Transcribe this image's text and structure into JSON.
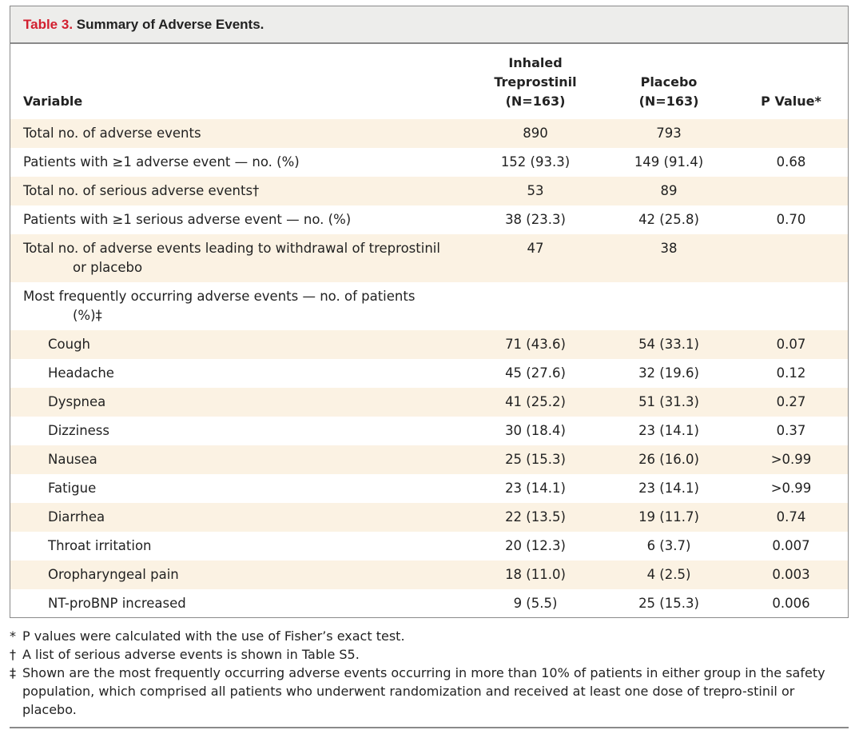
{
  "table": {
    "title_number": "Table 3.",
    "title_text": " Summary of Adverse Events.",
    "headers": {
      "variable": "Variable",
      "inhaled": [
        "Inhaled",
        "Treprostinil",
        "(N=163)"
      ],
      "placebo": [
        "Placebo",
        "(N=163)"
      ],
      "pvalue": "P Value*"
    },
    "rows": [
      {
        "variable": "Total no. of adverse events",
        "inhaled": "890",
        "placebo": "793",
        "pvalue": ""
      },
      {
        "variable": "Patients with ≥1 adverse event — no. (%)",
        "inhaled": "152 (93.3)",
        "placebo": "149 (91.4)",
        "pvalue": "0.68"
      },
      {
        "variable": "Total no. of serious adverse events†",
        "inhaled": "53",
        "placebo": "89",
        "pvalue": ""
      },
      {
        "variable": "Patients with ≥1 serious adverse event — no. (%)",
        "inhaled": "38 (23.3)",
        "placebo": "42 (25.8)",
        "pvalue": "0.70"
      },
      {
        "variable": "Total no. of adverse events leading to withdrawal of treprostinil",
        "variable_cont": "or placebo",
        "inhaled": "47",
        "placebo": "38",
        "pvalue": ""
      },
      {
        "variable": "Most frequently occurring adverse events — no. of patients",
        "variable_cont": "(%)‡",
        "inhaled": "",
        "placebo": "",
        "pvalue": ""
      },
      {
        "variable": "Cough",
        "inhaled": "71 (43.6)",
        "placebo": "54 (33.1)",
        "pvalue": "0.07"
      },
      {
        "variable": "Headache",
        "inhaled": "45 (27.6)",
        "placebo": "32 (19.6)",
        "pvalue": "0.12"
      },
      {
        "variable": "Dyspnea",
        "inhaled": "41 (25.2)",
        "placebo": "51 (31.3)",
        "pvalue": "0.27"
      },
      {
        "variable": "Dizziness",
        "inhaled": "30 (18.4)",
        "placebo": "23 (14.1)",
        "pvalue": "0.37"
      },
      {
        "variable": "Nausea",
        "inhaled": "25 (15.3)",
        "placebo": "26 (16.0)",
        "pvalue": ">0.99"
      },
      {
        "variable": "Fatigue",
        "inhaled": "23 (14.1)",
        "placebo": "23 (14.1)",
        "pvalue": ">0.99"
      },
      {
        "variable": "Diarrhea",
        "inhaled": "22 (13.5)",
        "placebo": "19 (11.7)",
        "pvalue": "0.74"
      },
      {
        "variable": "Throat irritation",
        "inhaled": "20 (12.3)",
        "placebo": "6 (3.7)",
        "pvalue": "0.007"
      },
      {
        "variable": "Oropharyngeal pain",
        "inhaled": "18 (11.0)",
        "placebo": "4 (2.5)",
        "pvalue": "0.003"
      },
      {
        "variable": "NT-proBNP increased",
        "inhaled": "9 (5.5)",
        "placebo": "25 (15.3)",
        "pvalue": "0.006"
      }
    ]
  },
  "footnotes": [
    {
      "mark": "*",
      "text": "P values were calculated with the use of Fisher’s exact test."
    },
    {
      "mark": "†",
      "text": "A list of serious adverse events is shown in Table S5."
    },
    {
      "mark": "‡",
      "text": "Shown are the most frequently occurring adverse events occurring in more than 10% of patients in either group in the safety population, which comprised all patients who underwent randomization and received at least one dose of trepro-stinil or placebo."
    }
  ],
  "colors": {
    "title_accent": "#d21f2f",
    "row_shade": "#fbf2e3",
    "title_bg": "#ededeb",
    "border": "#8a8a8a"
  }
}
